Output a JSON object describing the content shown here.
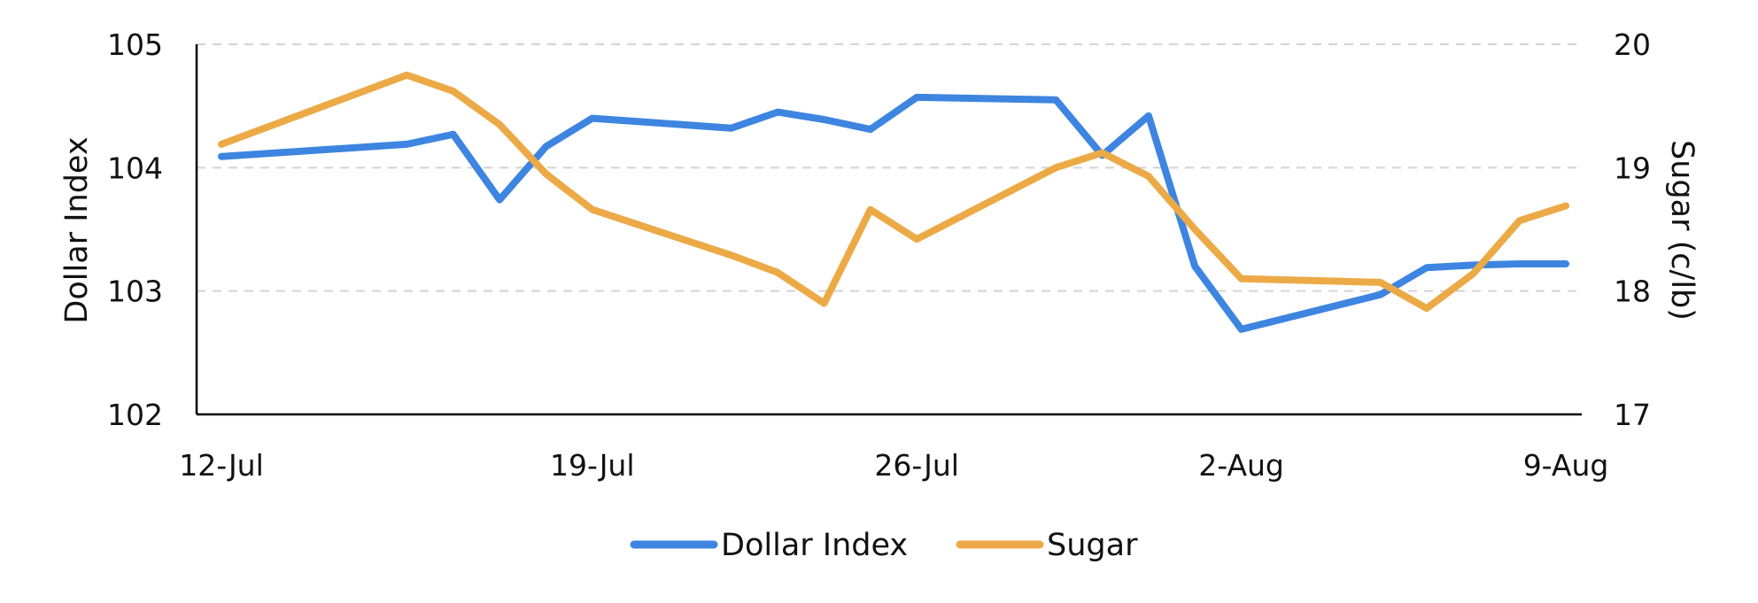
{
  "chart_data": {
    "type": "line",
    "x": [
      "12-Jul",
      "15-Jul",
      "16-Jul",
      "17-Jul",
      "18-Jul",
      "19-Jul",
      "22-Jul",
      "23-Jul",
      "24-Jul",
      "25-Jul",
      "26-Jul",
      "29-Jul",
      "30-Jul",
      "31-Jul",
      "1-Aug",
      "2-Aug",
      "5-Aug",
      "6-Aug",
      "7-Aug",
      "8-Aug",
      "9-Aug"
    ],
    "x_ticks": [
      "12-Jul",
      "19-Jul",
      "26-Jul",
      "2-Aug",
      "9-Aug"
    ],
    "series": [
      {
        "name": "Dollar Index",
        "axis": "left",
        "color": "#3d85e0",
        "values": [
          104.09,
          104.19,
          104.27,
          103.74,
          104.17,
          104.4,
          104.32,
          104.45,
          104.39,
          104.31,
          104.57,
          104.55,
          104.1,
          104.42,
          103.2,
          102.69,
          102.97,
          103.19,
          103.21,
          103.22,
          103.22
        ]
      },
      {
        "name": "Sugar",
        "axis": "right",
        "color": "#ecaa47",
        "values": [
          19.19,
          19.75,
          19.62,
          19.35,
          18.95,
          18.66,
          18.29,
          18.15,
          17.9,
          18.66,
          18.42,
          19.0,
          19.12,
          18.93,
          18.5,
          18.1,
          18.07,
          17.86,
          18.14,
          18.57,
          18.69
        ]
      }
    ],
    "x_positions": [
      0,
      4,
      5,
      6,
      7,
      8,
      11,
      12,
      13,
      14,
      15,
      18,
      19,
      20,
      21,
      22,
      25,
      26,
      27,
      28,
      29
    ],
    "y_left": {
      "label": "Dollar Index",
      "lim": [
        102,
        105
      ],
      "ticks": [
        "102",
        "103",
        "104",
        "105"
      ]
    },
    "y_right": {
      "label": "Sugar (c/lb)",
      "lim": [
        17,
        20
      ],
      "ticks": [
        "17",
        "18",
        "19",
        "20"
      ]
    },
    "grid": true,
    "legend_position": "bottom-center"
  }
}
